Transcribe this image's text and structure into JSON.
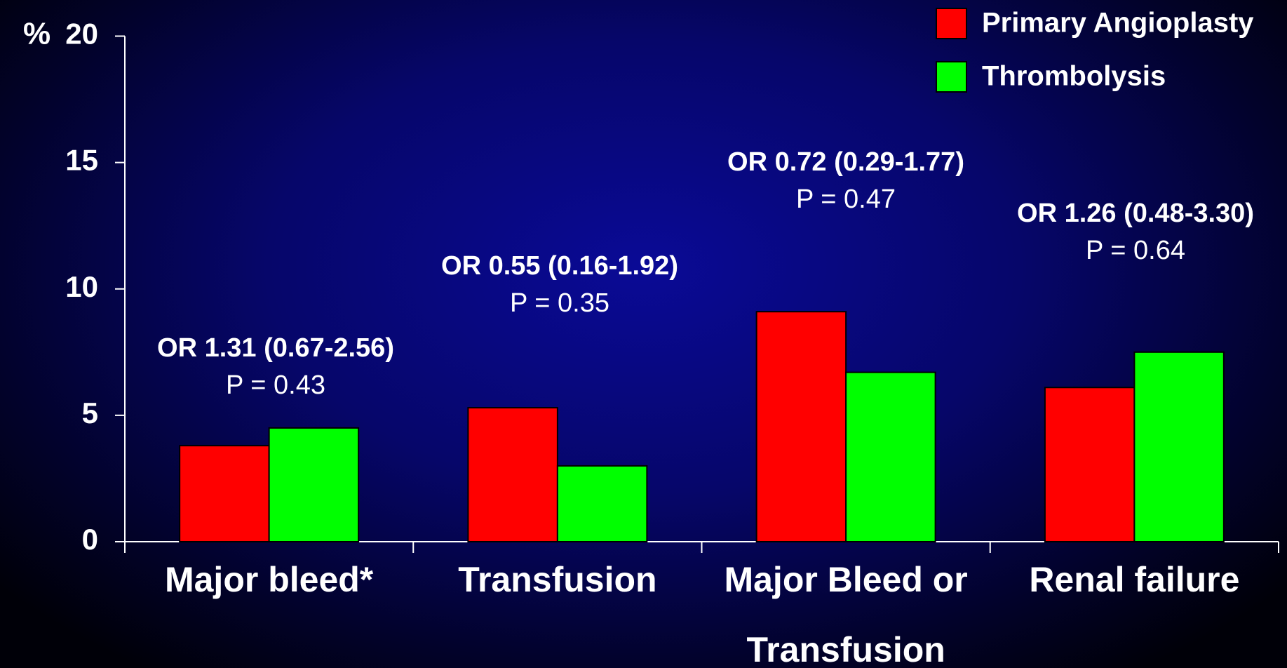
{
  "chart_data": {
    "type": "bar",
    "y_label": "%",
    "categories": [
      "Major bleed*",
      "Transfusion",
      "Major Bleed or Transfusion",
      "Renal failure"
    ],
    "series": [
      {
        "name": "Primary Angioplasty",
        "color": "#ff0000",
        "values": [
          3.8,
          5.3,
          9.1,
          6.1
        ]
      },
      {
        "name": "Thrombolysis",
        "color": "#00ff00",
        "values": [
          4.5,
          3.0,
          6.7,
          7.5
        ]
      }
    ],
    "annotations": [
      {
        "or": "OR 1.31 (0.67-2.56)",
        "p": "P = 0.43"
      },
      {
        "or": "OR 0.55 (0.16-1.92)",
        "p": "P = 0.35"
      },
      {
        "or": "OR 0.72 (0.29-1.77)",
        "p": "P = 0.47"
      },
      {
        "or": "OR 1.26 (0.48-3.30)",
        "p": "P = 0.64"
      }
    ],
    "ylim": [
      0,
      20
    ],
    "yticks": [
      0,
      5,
      10,
      15,
      20
    ],
    "legend": "top-right"
  }
}
